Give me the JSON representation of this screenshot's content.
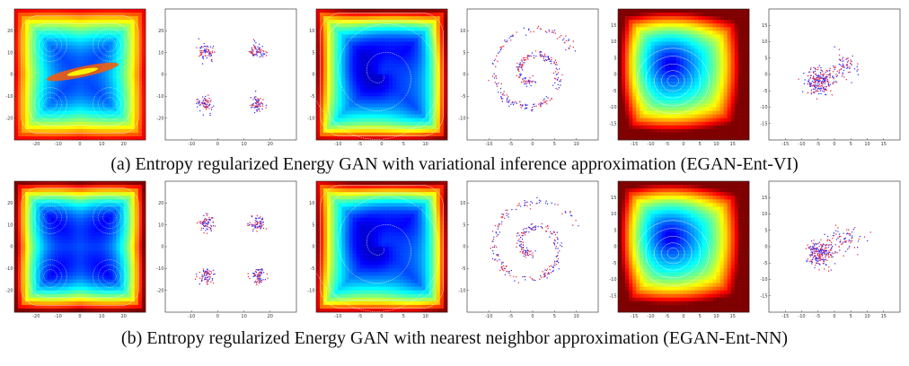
{
  "figure": {
    "rows": [
      {
        "id": "a",
        "caption": "(a) Entropy regularized Energy GAN with variational inference approximation (EGAN-Ent-VI)",
        "panels": [
          {
            "kind": "contour",
            "dataset": "grid",
            "variant": "vi",
            "xticks": [
              "-20",
              "-10",
              "0",
              "10",
              "20"
            ],
            "yticks": [
              "20",
              "10",
              "0",
              "-10",
              "-20"
            ]
          },
          {
            "kind": "scatter",
            "dataset": "grid",
            "xticks": [
              "-10",
              "0",
              "10",
              "20"
            ],
            "yticks": [
              "20",
              "10",
              "0",
              "-10",
              "-20"
            ]
          },
          {
            "kind": "contour",
            "dataset": "swiss",
            "variant": "vi",
            "xticks": [
              "-10",
              "-5",
              "0",
              "5",
              "10"
            ],
            "yticks": [
              "10",
              "5",
              "0",
              "-5",
              "-10"
            ]
          },
          {
            "kind": "scatter",
            "dataset": "swiss",
            "xticks": [
              "-10",
              "-5",
              "0",
              "5",
              "10"
            ],
            "yticks": [
              "10",
              "5",
              "0",
              "-5",
              "-10"
            ]
          },
          {
            "kind": "contour",
            "dataset": "biased",
            "variant": "vi",
            "xticks": [
              "-15",
              "-10",
              "-5",
              "0",
              "5",
              "10",
              "15"
            ],
            "yticks": [
              "15",
              "10",
              "5",
              "0",
              "-5",
              "-10",
              "-15"
            ]
          },
          {
            "kind": "scatter",
            "dataset": "biased",
            "xticks": [
              "-15",
              "-10",
              "-5",
              "0",
              "5",
              "10",
              "15"
            ],
            "yticks": [
              "15",
              "10",
              "5",
              "0",
              "-5",
              "-10",
              "-15"
            ]
          }
        ]
      },
      {
        "id": "b",
        "caption": "(b) Entropy regularized Energy GAN with nearest neighbor approximation (EGAN-Ent-NN)",
        "panels": [
          {
            "kind": "contour",
            "dataset": "grid",
            "variant": "nn",
            "xticks": [
              "-20",
              "-10",
              "0",
              "10",
              "20"
            ],
            "yticks": [
              "20",
              "10",
              "0",
              "-10",
              "-20"
            ]
          },
          {
            "kind": "scatter",
            "dataset": "grid",
            "xticks": [
              "-10",
              "0",
              "10",
              "20"
            ],
            "yticks": [
              "20",
              "10",
              "0",
              "-10",
              "-20"
            ]
          },
          {
            "kind": "contour",
            "dataset": "swiss",
            "variant": "nn",
            "xticks": [
              "-10",
              "-5",
              "0",
              "5",
              "10"
            ],
            "yticks": [
              "10",
              "5",
              "0",
              "-5",
              "-10"
            ]
          },
          {
            "kind": "scatter",
            "dataset": "swiss",
            "xticks": [
              "-10",
              "-5",
              "0",
              "5",
              "10"
            ],
            "yticks": [
              "10",
              "5",
              "0",
              "-5",
              "-10"
            ]
          },
          {
            "kind": "contour",
            "dataset": "biased",
            "variant": "nn",
            "xticks": [
              "-15",
              "-10",
              "-5",
              "0",
              "5",
              "10",
              "15"
            ],
            "yticks": [
              "15",
              "10",
              "5",
              "0",
              "-5",
              "-10",
              "-15"
            ]
          },
          {
            "kind": "scatter",
            "dataset": "biased",
            "xticks": [
              "-15",
              "-10",
              "-5",
              "0",
              "5",
              "10",
              "15"
            ],
            "yticks": [
              "15",
              "10",
              "5",
              "0",
              "-5",
              "-10",
              "-15"
            ]
          }
        ]
      }
    ],
    "colors": {
      "contour_ramp": [
        "#00007f",
        "#0000ff",
        "#007fff",
        "#00ffff",
        "#7fff7f",
        "#ffff00",
        "#ff7f00",
        "#ff0000",
        "#7f0000"
      ],
      "contour_line": "#ffffff",
      "scatter_real": "#2e2eff",
      "scatter_fake": "#e8203a"
    }
  }
}
